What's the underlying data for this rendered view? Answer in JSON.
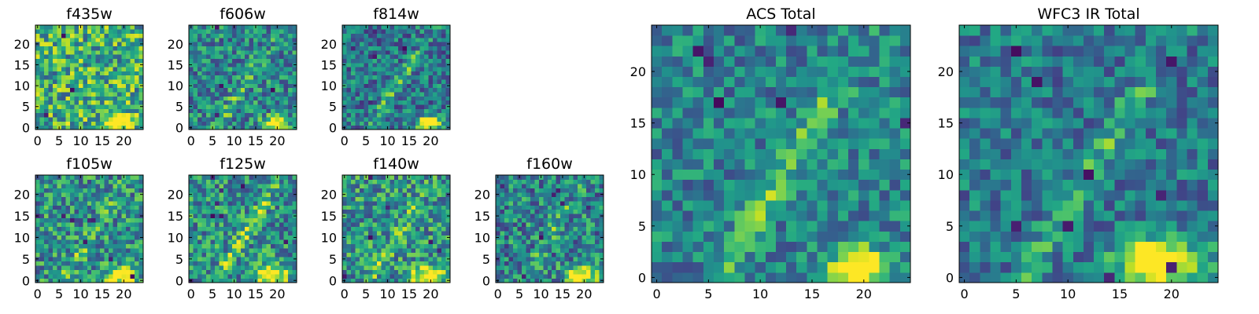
{
  "figure": {
    "domain": "astronomy cutouts",
    "colormap": "viridis"
  },
  "chart_data": [
    {
      "type": "heatmap",
      "title": "f435w",
      "xticks": [
        0,
        5,
        10,
        15,
        20
      ],
      "yticks": [
        0,
        5,
        10,
        15,
        20
      ],
      "xlim": [
        -0.5,
        24.5
      ],
      "ylim": [
        -0.5,
        24.5
      ],
      "grid": false,
      "seed": 11,
      "base": 0.62,
      "noise": 0.34,
      "blob": {
        "x": 19.0,
        "y": 1.5,
        "sx": 2.2,
        "sy": 1.4,
        "amp": 0.7
      },
      "ridge": {
        "amp": 0.05
      },
      "holes": 3
    },
    {
      "type": "heatmap",
      "title": "f606w",
      "xticks": [
        0,
        5,
        10,
        15,
        20
      ],
      "yticks": [
        0,
        5,
        10,
        15,
        20
      ],
      "xlim": [
        -0.5,
        24.5
      ],
      "ylim": [
        -0.5,
        24.5
      ],
      "grid": false,
      "seed": 23,
      "base": 0.46,
      "noise": 0.28,
      "blob": {
        "x": 19.5,
        "y": 1.0,
        "sx": 1.8,
        "sy": 1.2,
        "amp": 0.8
      },
      "ridge": {
        "amp": 0.22
      },
      "holes": 4
    },
    {
      "type": "heatmap",
      "title": "f814w",
      "xticks": [
        0,
        5,
        10,
        15,
        20
      ],
      "yticks": [
        0,
        5,
        10,
        15,
        20
      ],
      "xlim": [
        -0.5,
        24.5
      ],
      "ylim": [
        -0.5,
        24.5
      ],
      "grid": false,
      "seed": 37,
      "base": 0.4,
      "noise": 0.26,
      "blob": {
        "x": 19.5,
        "y": 1.0,
        "sx": 1.8,
        "sy": 1.2,
        "amp": 0.85
      },
      "ridge": {
        "amp": 0.25
      },
      "holes": 5
    },
    {
      "type": "heatmap",
      "title": "f105w",
      "xticks": [
        0,
        5,
        10,
        15,
        20
      ],
      "yticks": [
        0,
        5,
        10,
        15,
        20
      ],
      "xlim": [
        -0.5,
        24.5
      ],
      "ylim": [
        -0.5,
        24.5
      ],
      "grid": false,
      "seed": 41,
      "base": 0.5,
      "noise": 0.3,
      "blob": {
        "x": 19.5,
        "y": 1.0,
        "sx": 2.2,
        "sy": 1.4,
        "amp": 0.7
      },
      "ridge": {
        "amp": 0.2
      },
      "holes": 8
    },
    {
      "type": "heatmap",
      "title": "f125w",
      "xticks": [
        0,
        5,
        10,
        15,
        20
      ],
      "yticks": [
        0,
        5,
        10,
        15,
        20
      ],
      "xlim": [
        -0.5,
        24.5
      ],
      "ylim": [
        -0.5,
        24.5
      ],
      "grid": false,
      "seed": 53,
      "base": 0.5,
      "noise": 0.3,
      "blob": {
        "x": 18.5,
        "y": 1.2,
        "sx": 2.6,
        "sy": 1.6,
        "amp": 0.7
      },
      "ridge": {
        "amp": 0.3
      },
      "holes": 8
    },
    {
      "type": "heatmap",
      "title": "f140w",
      "xticks": [
        0,
        5,
        10,
        15,
        20
      ],
      "yticks": [
        0,
        5,
        10,
        15,
        20
      ],
      "xlim": [
        -0.5,
        24.5
      ],
      "ylim": [
        -0.5,
        24.5
      ],
      "grid": false,
      "seed": 67,
      "base": 0.52,
      "noise": 0.3,
      "blob": {
        "x": 19.5,
        "y": 1.0,
        "sx": 2.4,
        "sy": 1.5,
        "amp": 0.75
      },
      "ridge": {
        "amp": 0.2
      },
      "holes": 6
    },
    {
      "type": "heatmap",
      "title": "f160w",
      "xticks": [
        0,
        5,
        10,
        15,
        20
      ],
      "yticks": [
        0,
        5,
        10,
        15,
        20
      ],
      "xlim": [
        -0.5,
        24.5
      ],
      "ylim": [
        -0.5,
        24.5
      ],
      "grid": false,
      "seed": 79,
      "base": 0.45,
      "noise": 0.3,
      "blob": {
        "x": 19.5,
        "y": 1.0,
        "sx": 2.4,
        "sy": 1.5,
        "amp": 0.8
      },
      "ridge": {
        "amp": 0.2
      },
      "holes": 7
    },
    {
      "type": "heatmap",
      "title": "ACS Total",
      "xticks": [
        0,
        5,
        10,
        15,
        20
      ],
      "yticks": [
        0,
        5,
        10,
        15,
        20
      ],
      "xlim": [
        -0.5,
        24.5
      ],
      "ylim": [
        -0.5,
        24.5
      ],
      "grid": false,
      "seed": 97,
      "base": 0.44,
      "noise": 0.22,
      "blob": {
        "x": 19.5,
        "y": 1.0,
        "sx": 1.8,
        "sy": 1.3,
        "amp": 0.9
      },
      "ridge": {
        "amp": 0.28
      },
      "holes": 6
    },
    {
      "type": "heatmap",
      "title": "WFC3 IR Total",
      "xticks": [
        0,
        5,
        10,
        15,
        20
      ],
      "yticks": [
        0,
        5,
        10,
        15,
        20
      ],
      "xlim": [
        -0.5,
        24.5
      ],
      "ylim": [
        -0.5,
        24.5
      ],
      "grid": false,
      "seed": 131,
      "base": 0.4,
      "noise": 0.22,
      "blob": {
        "x": 19.0,
        "y": 1.5,
        "sx": 2.6,
        "sy": 1.6,
        "amp": 0.9
      },
      "ridge": {
        "amp": 0.25
      },
      "holes": 9
    }
  ]
}
